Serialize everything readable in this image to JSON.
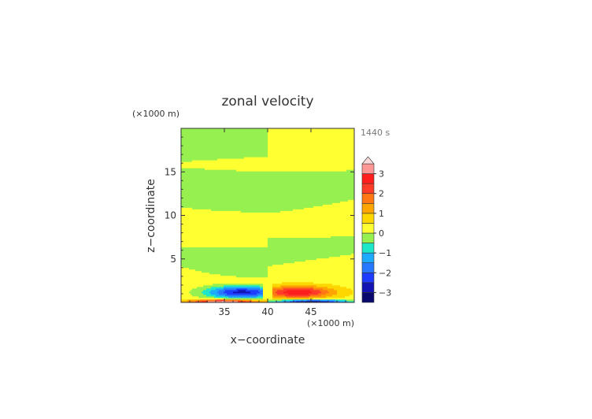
{
  "chart_data": {
    "type": "heatmap",
    "title": "zonal velocity",
    "time_label": "1440 s",
    "xlabel": "x−coordinate",
    "ylabel": "z−coordinate",
    "x_unit": "(×1000 m)",
    "y_unit": "(×1000 m)",
    "xlim": [
      30,
      50
    ],
    "ylim": [
      0,
      20
    ],
    "x_ticks": [
      {
        "value": 35,
        "label": "35"
      },
      {
        "value": 40,
        "label": "40"
      },
      {
        "value": 45,
        "label": "45"
      }
    ],
    "y_ticks": [
      {
        "value": 5,
        "label": "5"
      },
      {
        "value": 10,
        "label": "10"
      },
      {
        "value": 15,
        "label": "15"
      }
    ],
    "colorbar": {
      "min": -3.5,
      "max": 3.5,
      "step": 0.5,
      "extend": "max",
      "labels": [
        {
          "value": 3,
          "label": "3"
        },
        {
          "value": 2,
          "label": "2"
        },
        {
          "value": 1,
          "label": "1"
        },
        {
          "value": 0,
          "label": "0"
        },
        {
          "value": -1,
          "label": "−1"
        },
        {
          "value": -2,
          "label": "−2"
        },
        {
          "value": -3,
          "label": "−3"
        }
      ],
      "colors": [
        "#0a0a6e",
        "#1414b4",
        "#1e3cff",
        "#2878ff",
        "#1eaaff",
        "#1ee6c8",
        "#96f050",
        "#ffff32",
        "#ffd700",
        "#ffa500",
        "#ff7814",
        "#ff3c28",
        "#ff1e1e",
        "#ff9696"
      ],
      "extend_color": "#fadada"
    },
    "fields": {
      "bands": [
        {
          "range": "upper",
          "value": 0.3
        },
        {
          "range": "lower",
          "value": -0.3
        }
      ],
      "jets": [
        {
          "x_range": [
            30,
            39.5
          ],
          "z_center": 1.2,
          "peak": -3.0,
          "peak_x": 37
        },
        {
          "x_range": [
            40.5,
            50
          ],
          "z_center": 1.2,
          "peak": 2.6,
          "peak_x": 43.5
        },
        {
          "x_range": [
            30,
            40
          ],
          "z_center": 0.1,
          "peak": 3.4,
          "peak_x": 35
        },
        {
          "x_range": [
            40,
            50
          ],
          "z_center": 0.1,
          "peak": -3.6,
          "peak_x": 45
        }
      ]
    }
  }
}
